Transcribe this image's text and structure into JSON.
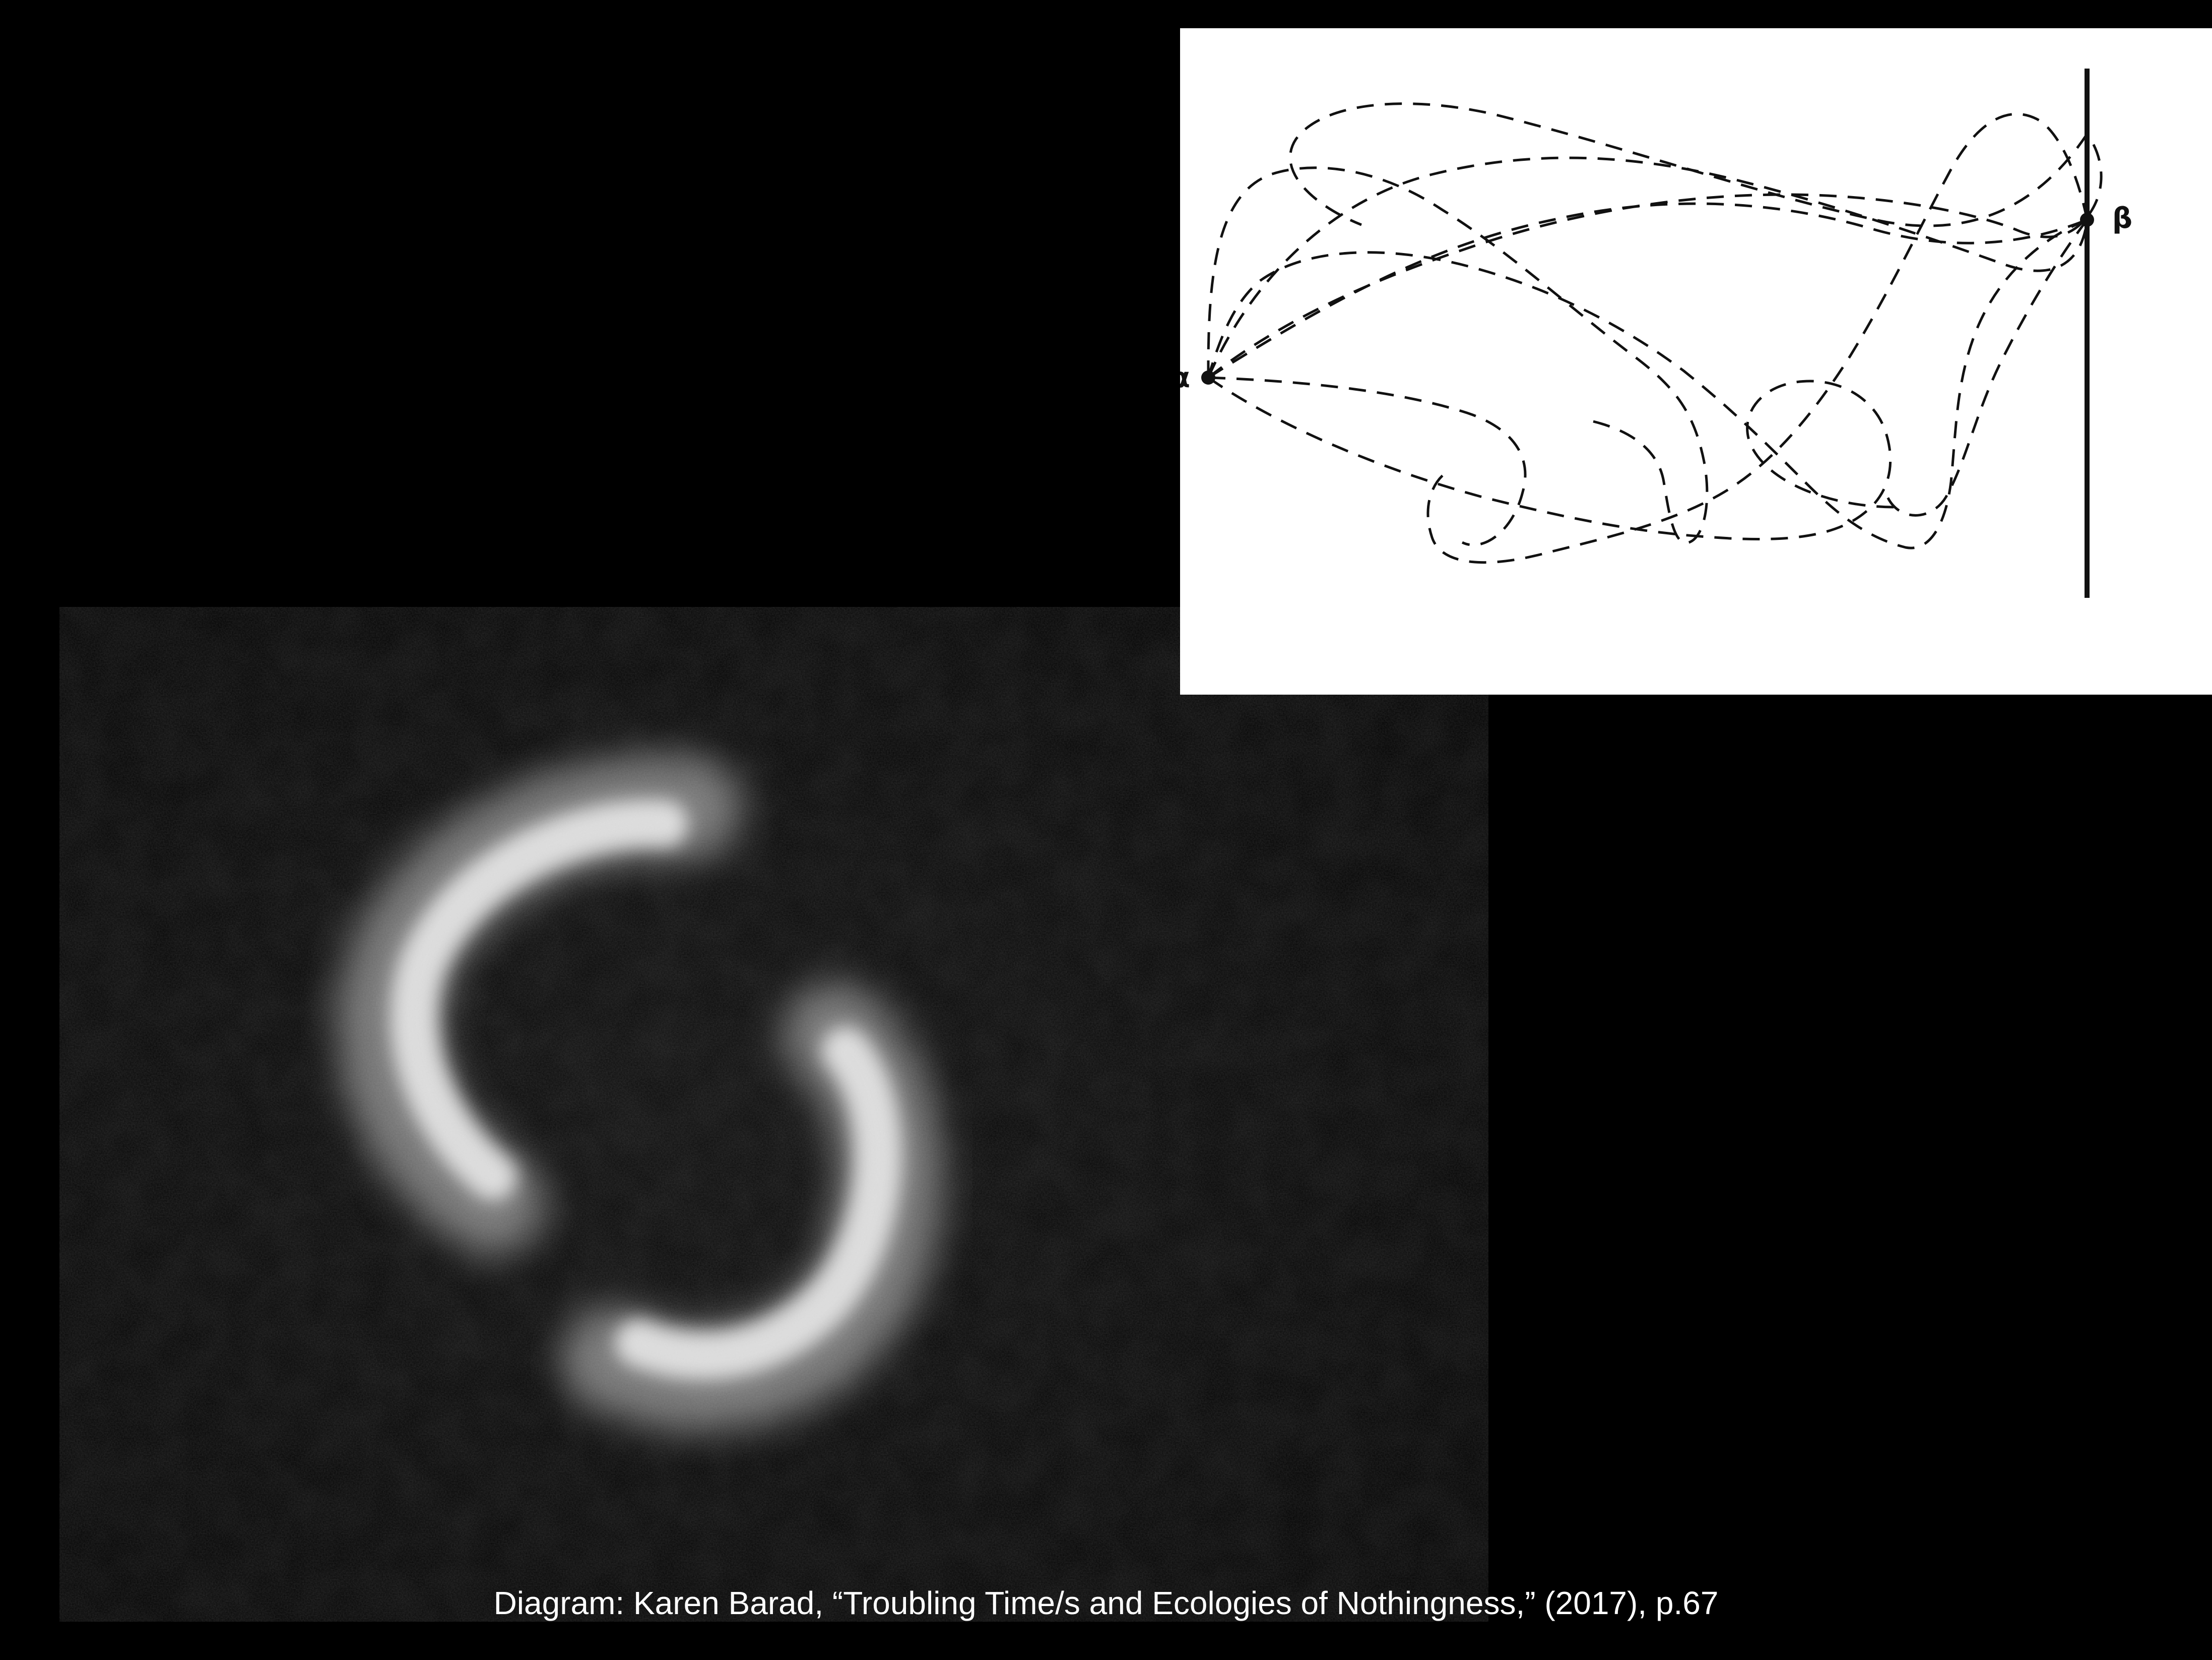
{
  "diagram": {
    "point_a_label": "α",
    "point_b_label": "β"
  },
  "caption": "Diagram: Karen Barad, “Troubling Time/s and Ecologies of Nothingness,” (2017), p.67",
  "colors": {
    "background": "#000000",
    "diagram_background": "#ffffff",
    "ink": "#111111",
    "glow": "#e6e6e6",
    "caption_text": "#ffffff"
  }
}
